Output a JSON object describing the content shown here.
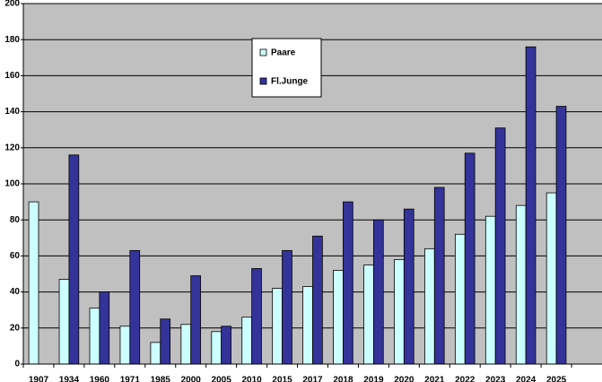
{
  "chart_data": {
    "type": "bar",
    "categories": [
      "1907",
      "1934",
      "1960",
      "1971",
      "1985",
      "2000",
      "2005",
      "2010",
      "2015",
      "2017",
      "2018",
      "2019",
      "2020",
      "2021",
      "2022",
      "2023",
      "2024",
      "2025",
      null
    ],
    "series": [
      {
        "name": "Paare",
        "color": "#ccffff",
        "values": [
          90,
          47,
          31,
          21,
          12,
          22,
          18,
          26,
          42,
          43,
          52,
          55,
          58,
          64,
          72,
          82,
          88,
          95,
          null
        ]
      },
      {
        "name": "Fl.Junge",
        "color": "#333399",
        "values": [
          null,
          116,
          40,
          63,
          25,
          49,
          21,
          53,
          63,
          71,
          90,
          80,
          86,
          98,
          117,
          131,
          176,
          143,
          null
        ]
      }
    ],
    "ylim": [
      0,
      200
    ],
    "yticks": [
      0,
      20,
      40,
      60,
      80,
      100,
      120,
      140,
      160,
      180,
      200
    ],
    "grid": true
  }
}
